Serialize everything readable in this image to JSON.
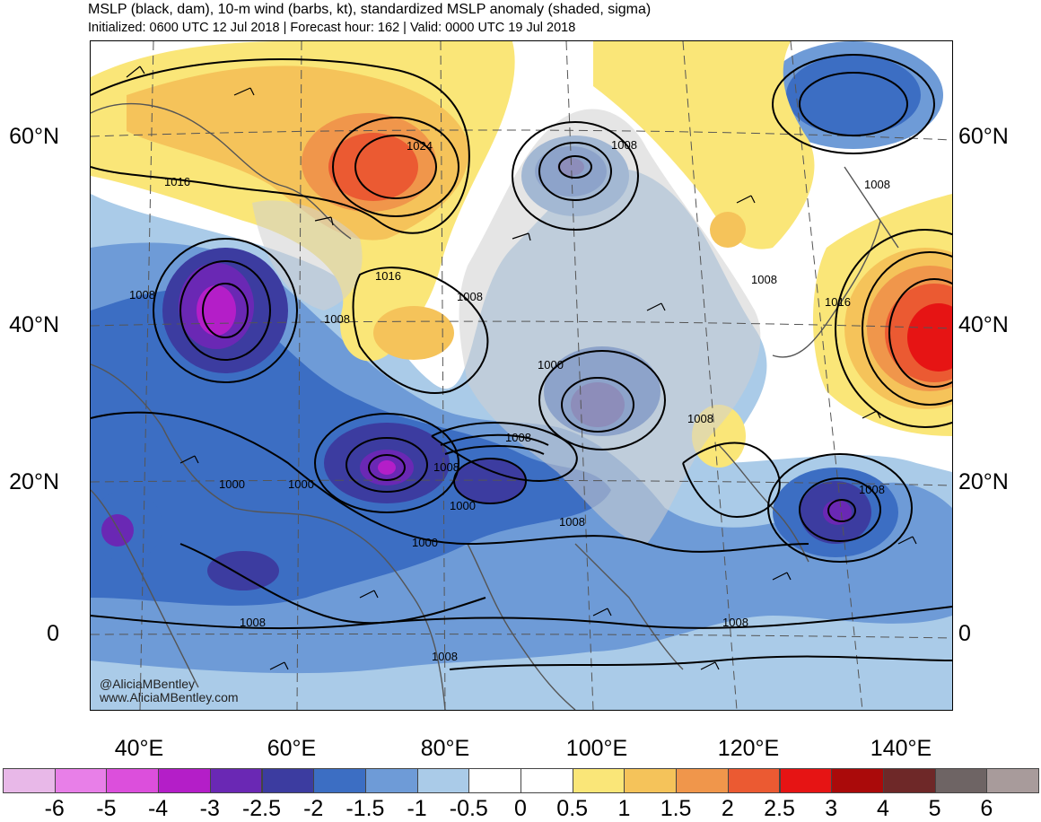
{
  "header": {
    "title": "MSLP (black, dam), 10-m wind (barbs, kt), standardized MSLP anomaly (shaded, sigma)",
    "subtitle": "Initialized: 0600 UTC 12 Jul 2018 | Forecast hour: 162 | Valid: 0000 UTC 19 Jul 2018"
  },
  "axes": {
    "lat_labels": [
      "60°N",
      "40°N",
      "20°N",
      "0"
    ],
    "lon_labels": [
      "40°E",
      "60°E",
      "80°E",
      "100°E",
      "120°E",
      "140°E"
    ]
  },
  "credits": {
    "handle": "@AliciaMBentley",
    "site": "www.AliciaMBentley.com"
  },
  "isobars": {
    "l1024": "1024",
    "l1016a": "1016",
    "l1016b": "1016",
    "l1016c": "1016",
    "l1008a": "1008",
    "l1008b": "1008",
    "l1008c": "1008",
    "l1008d": "1008",
    "l1008e": "1008",
    "l1008f": "1008",
    "l1008g": "1008",
    "l1008h": "1008",
    "l1008i": "1008",
    "l1008j": "1008",
    "l1008k": "1008",
    "l1008l": "1008",
    "l1008m": "1008",
    "l1000a": "1000",
    "l1000b": "1000",
    "l1000c": "1000",
    "l1000d": "1000",
    "l1000e": "1000",
    "l1000f": "1000"
  },
  "colorbar": {
    "labels": [
      "-6",
      "-5",
      "-4",
      "-3",
      "-2.5",
      "-2",
      "-1.5",
      "-1",
      "-0.5",
      "0",
      "0.5",
      "1",
      "1.5",
      "2",
      "2.5",
      "3",
      "4",
      "5",
      "6"
    ],
    "colors": [
      "#e8b8e8",
      "#e87fe8",
      "#dc4fdc",
      "#b41ec8",
      "#6a28b4",
      "#3c3ca0",
      "#3c6ec3",
      "#6e9bd7",
      "#aacbe8",
      "#ffffff",
      "#ffffff",
      "#fae678",
      "#f5c35a",
      "#f0964b",
      "#eb5a32",
      "#e61414",
      "#aa0a0a",
      "#6e2828",
      "#6e6464",
      "#a89b9b"
    ]
  }
}
